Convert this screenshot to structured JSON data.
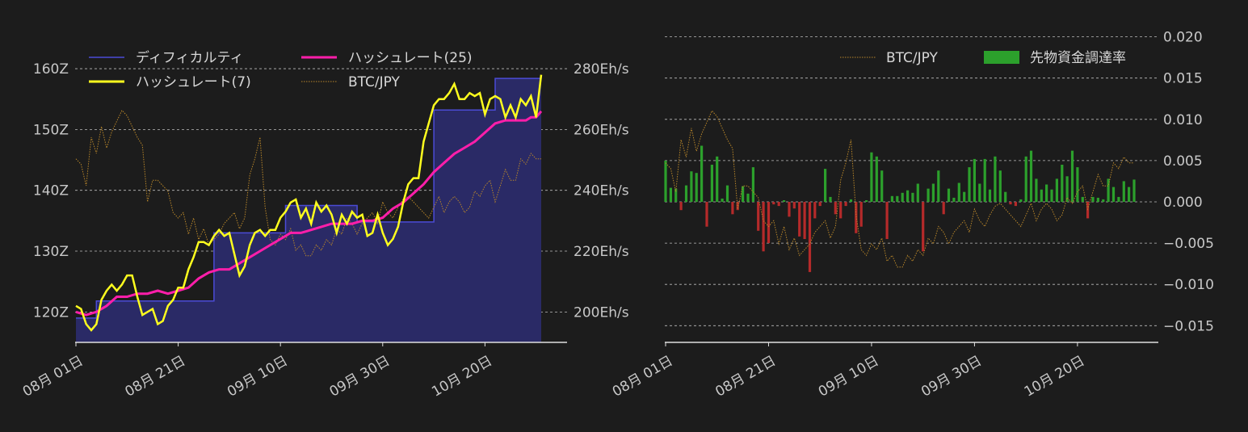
{
  "colors": {
    "background": "#1c1c1c",
    "difficulty_line": "#4b4bd6",
    "difficulty_fill": "#2a2a66",
    "hashrate7": "#ffff1e",
    "hashrate25": "#ff1eaa",
    "btc": "#b8862a",
    "funding_pos": "#2ca02c",
    "funding_neg": "#b52a2a",
    "axis": "#e0e0e0"
  },
  "chart_data": [
    {
      "type": "line",
      "id": "difficulty-hashrate",
      "x_tick_labels": [
        "08月 01日",
        "08月 21日",
        "09月 10日",
        "09月 30日",
        "10月 20日"
      ],
      "x_tick_days": [
        1,
        21,
        41,
        61,
        81
      ],
      "x_range_days": [
        1,
        92
      ],
      "y_left_ticks": [
        "120Z",
        "130Z",
        "140Z",
        "150Z",
        "160Z"
      ],
      "y_left_range": [
        115,
        162
      ],
      "y_right_ticks": [
        "200Eh/s",
        "220Eh/s",
        "240Eh/s",
        "260Eh/s",
        "280Eh/s"
      ],
      "y_right_range": [
        190,
        284
      ],
      "legend": [
        "ディフィカルティ",
        "ハッシュレート(25)",
        "ハッシュレート(7)",
        "BTC/JPY"
      ],
      "grid": "horizontal dashed",
      "series": [
        {
          "name": "ディフィカルティ",
          "axis": "left",
          "style": "step-area",
          "x": [
            1,
            5,
            5,
            28,
            28,
            42,
            42,
            56,
            56,
            71,
            71,
            83,
            83,
            92
          ],
          "values": [
            119,
            119,
            121.8,
            121.8,
            133,
            133,
            137.5,
            137.5,
            134.8,
            134.8,
            153.2,
            153.2,
            158.4,
            158.4
          ]
        },
        {
          "name": "ハッシュレート(7)",
          "axis": "right",
          "x": [
            1,
            2,
            3,
            4,
            5,
            6,
            7,
            8,
            9,
            10,
            11,
            12,
            13,
            14,
            15,
            16,
            17,
            18,
            19,
            20,
            21,
            22,
            23,
            24,
            25,
            26,
            27,
            28,
            29,
            30,
            31,
            32,
            33,
            34,
            35,
            36,
            37,
            38,
            39,
            40,
            41,
            42,
            43,
            44,
            45,
            46,
            47,
            48,
            49,
            50,
            51,
            52,
            53,
            54,
            55,
            56,
            57,
            58,
            59,
            60,
            61,
            62,
            63,
            64,
            65,
            66,
            67,
            68,
            69,
            70,
            71,
            72,
            73,
            74,
            75,
            76,
            77,
            78,
            79,
            80,
            81,
            82,
            83,
            84,
            85,
            86,
            87,
            88,
            89,
            90,
            91,
            92
          ],
          "values": [
            202,
            201,
            196,
            194,
            196,
            204,
            207,
            209,
            207,
            209,
            212,
            212,
            205,
            199,
            200,
            201,
            196,
            197,
            202,
            204,
            208,
            208,
            214,
            218,
            223,
            223,
            222,
            225,
            227,
            225,
            226,
            219,
            212,
            215,
            222,
            226,
            227,
            225,
            227,
            227,
            231,
            233,
            236,
            237,
            231,
            234,
            229,
            236,
            233,
            235,
            232,
            226,
            232,
            229,
            233,
            231,
            232,
            225,
            226,
            232,
            226,
            222,
            224,
            228,
            236,
            242,
            244,
            244,
            256,
            262,
            268,
            270,
            270,
            272,
            275,
            270,
            270,
            272,
            271,
            272,
            265,
            270,
            271,
            270,
            264,
            268,
            264,
            270,
            268,
            271,
            264,
            278
          ]
        },
        {
          "name": "ハッシュレート(25)",
          "axis": "right",
          "x": [
            1,
            3,
            5,
            7,
            9,
            11,
            13,
            15,
            17,
            19,
            21,
            23,
            25,
            27,
            29,
            31,
            33,
            35,
            37,
            39,
            41,
            43,
            45,
            47,
            49,
            51,
            53,
            55,
            57,
            59,
            61,
            63,
            65,
            67,
            69,
            71,
            73,
            75,
            77,
            79,
            81,
            83,
            85,
            87,
            89,
            90,
            91,
            92
          ],
          "values": [
            200,
            199,
            200,
            202,
            205,
            205,
            206,
            206,
            207,
            206,
            207,
            208,
            211,
            213,
            214,
            214,
            216,
            218,
            220,
            222,
            224,
            226,
            226,
            227,
            228,
            229,
            229,
            229,
            230,
            230,
            231,
            234,
            236,
            239,
            242,
            246,
            249,
            252,
            254,
            256,
            259,
            262,
            263,
            263,
            263,
            264,
            264,
            266
          ]
        },
        {
          "name": "BTC/JPY",
          "axis": "hidden",
          "style": "dotted",
          "x": [
            1,
            2,
            3,
            4,
            5,
            6,
            7,
            8,
            9,
            10,
            11,
            12,
            13,
            14,
            15,
            16,
            17,
            18,
            19,
            20,
            21,
            22,
            23,
            24,
            25,
            26,
            27,
            28,
            29,
            30,
            31,
            32,
            33,
            34,
            35,
            36,
            37,
            38,
            39,
            40,
            41,
            42,
            43,
            44,
            45,
            46,
            47,
            48,
            49,
            50,
            51,
            52,
            53,
            54,
            55,
            56,
            57,
            58,
            59,
            60,
            61,
            62,
            63,
            64,
            65,
            66,
            67,
            68,
            69,
            70,
            71,
            72,
            73,
            74,
            75,
            76,
            77,
            78,
            79,
            80,
            81,
            82,
            83,
            84,
            85,
            86,
            87,
            88,
            89,
            90,
            91,
            92
          ],
          "values": [
            70,
            68,
            60,
            78,
            72,
            82,
            74,
            80,
            84,
            88,
            86,
            82,
            78,
            75,
            54,
            62,
            62,
            60,
            58,
            50,
            48,
            50,
            42,
            48,
            40,
            44,
            38,
            40,
            42,
            46,
            48,
            50,
            44,
            48,
            64,
            70,
            78,
            52,
            40,
            38,
            42,
            40,
            44,
            36,
            38,
            34,
            34,
            38,
            36,
            40,
            38,
            44,
            42,
            48,
            46,
            42,
            46,
            48,
            50,
            46,
            54,
            50,
            48,
            52,
            55,
            56,
            54,
            52,
            50,
            48,
            52,
            56,
            50,
            54,
            56,
            54,
            50,
            52,
            58,
            56,
            60,
            62,
            54,
            60,
            66,
            62,
            62,
            70,
            68,
            72,
            70,
            70
          ]
        }
      ]
    },
    {
      "type": "bar",
      "id": "funding-rate",
      "x_tick_labels": [
        "08月 01日",
        "08月 21日",
        "09月 10日",
        "09月 30日",
        "10月 20日"
      ],
      "x_tick_days": [
        1,
        21,
        41,
        61,
        81
      ],
      "x_range_days": [
        1,
        92
      ],
      "y_right_ticks": [
        "0.020",
        "0.015",
        "0.010",
        "0.005",
        "0.000",
        "−0.005",
        "−0.010",
        "−0.015"
      ],
      "y_right_range": [
        -0.017,
        0.0205
      ],
      "legend": [
        "BTC/JPY",
        "先物資金調達率"
      ],
      "grid": "horizontal dashed",
      "series": [
        {
          "name": "先物資金調達率",
          "style": "bar",
          "x": [
            1,
            2,
            3,
            4,
            5,
            6,
            7,
            8,
            9,
            10,
            11,
            12,
            13,
            14,
            15,
            16,
            17,
            18,
            19,
            20,
            21,
            22,
            23,
            24,
            25,
            26,
            27,
            28,
            29,
            30,
            31,
            32,
            33,
            34,
            35,
            36,
            37,
            38,
            39,
            40,
            41,
            42,
            43,
            44,
            45,
            46,
            47,
            48,
            49,
            50,
            51,
            52,
            53,
            54,
            55,
            56,
            57,
            58,
            59,
            60,
            61,
            62,
            63,
            64,
            65,
            66,
            67,
            68,
            69,
            70,
            71,
            72,
            73,
            74,
            75,
            76,
            77,
            78,
            79,
            80,
            81,
            82,
            83,
            84,
            85,
            86,
            87,
            88,
            89,
            90,
            91,
            92
          ],
          "values": [
            0.005,
            0.0017,
            0.0016,
            -0.001,
            0.002,
            0.0037,
            0.0035,
            0.0068,
            -0.003,
            0.0045,
            0.0055,
            0.0004,
            0.002,
            -0.0015,
            -0.001,
            0.0019,
            0.001,
            0.0042,
            -0.0035,
            -0.006,
            -0.005,
            -0.0003,
            -0.0005,
            0.0002,
            -0.0018,
            -0.0008,
            -0.0042,
            -0.0045,
            -0.0085,
            -0.002,
            -0.0005,
            0.004,
            0.0006,
            -0.0015,
            -0.002,
            -0.0005,
            0.0003,
            -0.0038,
            -0.003,
            0.0002,
            0.006,
            0.0055,
            0.0038,
            -0.0045,
            0.0007,
            0.0007,
            0.0011,
            0.0014,
            0.0011,
            0.0022,
            -0.006,
            0.0016,
            0.0022,
            0.0038,
            -0.0015,
            0.0016,
            0.0005,
            0.0023,
            0.0012,
            0.0042,
            0.0052,
            0.0022,
            0.0052,
            0.0015,
            0.0055,
            0.0038,
            0.0012,
            -0.0003,
            -0.0005,
            0.0003,
            0.0055,
            0.0062,
            0.0028,
            0.0015,
            0.0021,
            0.0015,
            0.0028,
            0.0045,
            0.0031,
            0.0062,
            0.0042,
            0.0006,
            -0.002,
            0.0006,
            0.0005,
            0.0003,
            0.0028,
            0.0018,
            0.0006,
            0.0025,
            0.0018,
            0.0027
          ]
        },
        {
          "name": "BTC/JPY",
          "style": "dotted",
          "x": [
            1,
            2,
            3,
            4,
            5,
            6,
            7,
            8,
            9,
            10,
            11,
            12,
            13,
            14,
            15,
            16,
            17,
            18,
            19,
            20,
            21,
            22,
            23,
            24,
            25,
            26,
            27,
            28,
            29,
            30,
            31,
            32,
            33,
            34,
            35,
            36,
            37,
            38,
            39,
            40,
            41,
            42,
            43,
            44,
            45,
            46,
            47,
            48,
            49,
            50,
            51,
            52,
            53,
            54,
            55,
            56,
            57,
            58,
            59,
            60,
            61,
            62,
            63,
            64,
            65,
            66,
            67,
            68,
            69,
            70,
            71,
            72,
            73,
            74,
            75,
            76,
            77,
            78,
            79,
            80,
            81,
            82,
            83,
            84,
            85,
            86,
            87,
            88,
            89,
            90,
            91,
            92
          ],
          "values": [
            70,
            68,
            60,
            78,
            72,
            82,
            74,
            80,
            84,
            88,
            86,
            82,
            78,
            75,
            54,
            62,
            62,
            60,
            58,
            50,
            48,
            50,
            42,
            48,
            40,
            44,
            38,
            40,
            42,
            46,
            48,
            50,
            44,
            48,
            64,
            70,
            78,
            52,
            40,
            38,
            42,
            40,
            44,
            36,
            38,
            34,
            34,
            38,
            36,
            40,
            38,
            44,
            42,
            48,
            46,
            42,
            46,
            48,
            50,
            46,
            54,
            50,
            48,
            52,
            55,
            56,
            54,
            52,
            50,
            48,
            52,
            56,
            50,
            54,
            56,
            54,
            50,
            52,
            58,
            56,
            60,
            62,
            54,
            60,
            66,
            62,
            62,
            70,
            68,
            72,
            70,
            70
          ]
        }
      ]
    }
  ]
}
